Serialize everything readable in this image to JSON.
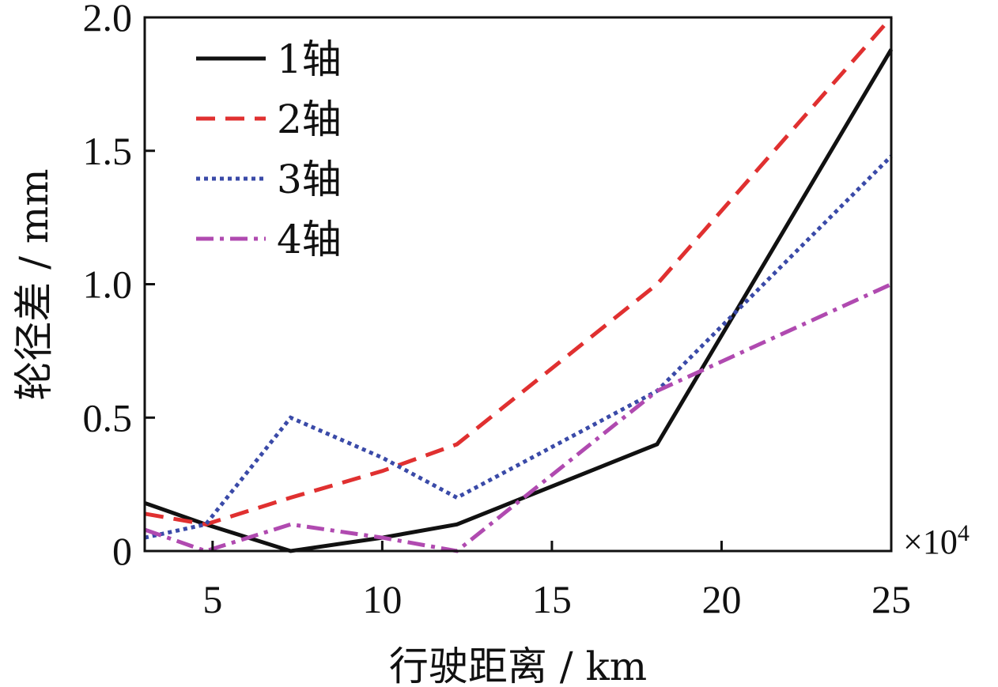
{
  "chart_data": {
    "type": "line",
    "title": "",
    "xlabel": "行驶距离 / km",
    "ylabel": "轮径差 / mm",
    "x_multiplier_base": "×10",
    "x_multiplier_exp": "4",
    "xlim": [
      3,
      25
    ],
    "ylim": [
      0,
      2.0
    ],
    "xticks": [
      5,
      10,
      15,
      20,
      25
    ],
    "xtick_labels": [
      "5",
      "10",
      "15",
      "20",
      "25"
    ],
    "yticks": [
      0,
      0.5,
      1.0,
      1.5,
      2.0
    ],
    "ytick_labels": [
      "0",
      "0.5",
      "1.0",
      "1.5",
      "2.0"
    ],
    "legend_position": "top-left",
    "grid": false,
    "series": [
      {
        "name": "1轴",
        "color": "#111111",
        "dash": "solid",
        "x": [
          3,
          4.8,
          7.3,
          10,
          12.2,
          18.1,
          25
        ],
        "y": [
          0.18,
          0.1,
          0.0,
          0.05,
          0.1,
          0.4,
          1.88
        ]
      },
      {
        "name": "2轴",
        "color": "#e03030",
        "dash": "dashed",
        "x": [
          3,
          4.8,
          7.3,
          10,
          12.2,
          18.1,
          25
        ],
        "y": [
          0.14,
          0.1,
          0.2,
          0.3,
          0.4,
          1.0,
          2.0
        ]
      },
      {
        "name": "3轴",
        "color": "#3a4aa8",
        "dash": "dotted",
        "x": [
          3,
          4.8,
          7.3,
          10,
          12.2,
          18.1,
          25
        ],
        "y": [
          0.05,
          0.1,
          0.5,
          0.35,
          0.2,
          0.6,
          1.48
        ]
      },
      {
        "name": "4轴",
        "color": "#b04ab0",
        "dash": "dashdot",
        "x": [
          3,
          4.8,
          7.3,
          10,
          12.2,
          18.1,
          25
        ],
        "y": [
          0.08,
          0.0,
          0.1,
          0.05,
          0.0,
          0.6,
          1.0
        ]
      }
    ]
  }
}
